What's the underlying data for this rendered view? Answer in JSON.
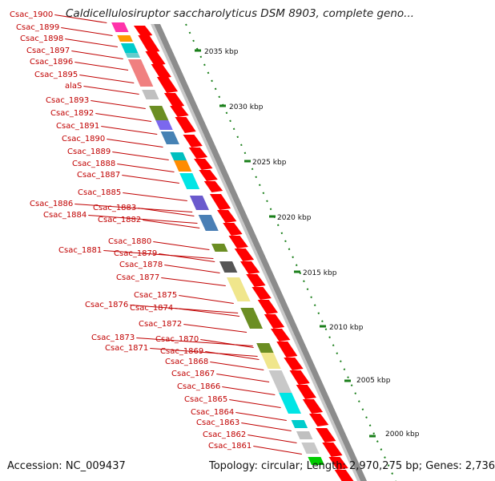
{
  "header": {
    "title": "Caldicellulosiruptor saccharolyticus DSM 8903, complete geno..."
  },
  "footer": {
    "accession_text": "Accession: NC_009437",
    "summary_text": "Topology: circular; Length: 2,970,275 bp; Genes: 2,736"
  },
  "map": {
    "ticks": [
      {
        "label": "2035 kbp"
      },
      {
        "label": "2030 kbp"
      },
      {
        "label": "2025 kbp"
      },
      {
        "label": "2020 kbp"
      },
      {
        "label": "2015 kbp"
      },
      {
        "label": "2010 kbp"
      },
      {
        "label": "2005 kbp"
      },
      {
        "label": "2000 kbp"
      }
    ],
    "gene_labels": [
      "Csac_1900",
      "Csac_1899",
      "Csac_1898",
      "Csac_1897",
      "Csac_1896",
      "Csac_1895",
      "alaS",
      "Csac_1893",
      "Csac_1892",
      "Csac_1891",
      "Csac_1890",
      "Csac_1889",
      "Csac_1888",
      "Csac_1887",
      "Csac_1885",
      "Csac_1886",
      "Csac_1883",
      "Csac_1884",
      "Csac_1882",
      "Csac_1880",
      "Csac_1881",
      "Csac_1879",
      "Csac_1878",
      "Csac_1877",
      "Csac_1875",
      "Csac_1876",
      "Csac_1874",
      "Csac_1872",
      "Csac_1873",
      "Csac_1870",
      "Csac_1871",
      "Csac_1869",
      "Csac_1868",
      "Csac_1867",
      "Csac_1866",
      "Csac_1865",
      "Csac_1864",
      "Csac_1863",
      "Csac_1862",
      "Csac_1861"
    ],
    "colors": {
      "label": "#c00000",
      "forward_strand": "#ff0000",
      "backbone": "#808080",
      "tick": "#1a7f1a"
    }
  }
}
